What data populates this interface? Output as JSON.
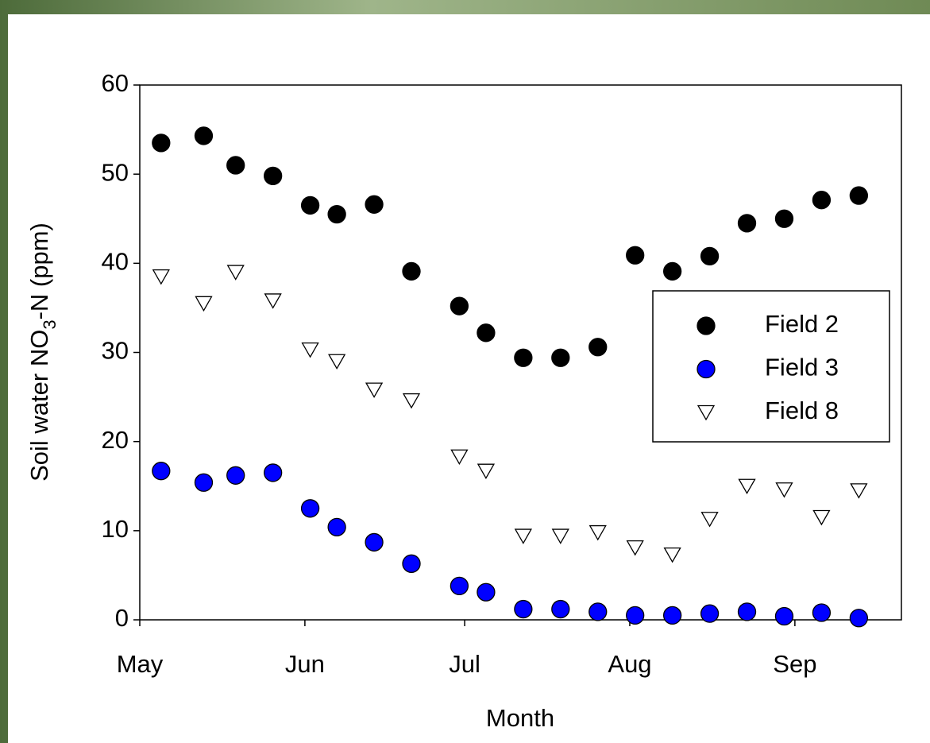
{
  "chart_data": {
    "type": "scatter",
    "xlabel": "Month",
    "ylabel": [
      "Soil water NO",
      "3",
      "-N (ppm)"
    ],
    "xlim": [
      0,
      143
    ],
    "xticks": [
      {
        "value": 0,
        "label": "May"
      },
      {
        "value": 31,
        "label": "Jun"
      },
      {
        "value": 61,
        "label": "Jul"
      },
      {
        "value": 92,
        "label": "Aug"
      },
      {
        "value": 123,
        "label": "Sep"
      }
    ],
    "ylim": [
      0,
      60
    ],
    "yticks": [
      0,
      10,
      20,
      30,
      40,
      50,
      60
    ],
    "x": [
      4,
      12,
      18,
      25,
      32,
      37,
      44,
      51,
      60,
      65,
      72,
      79,
      86,
      93,
      100,
      107,
      114,
      121,
      128,
      135
    ],
    "series": [
      {
        "name": "Field 2",
        "color": "#000000",
        "marker": "circle",
        "values": [
          53.5,
          54.3,
          51,
          49.8,
          46.5,
          45.5,
          46.6,
          39.1,
          35.2,
          32.2,
          29.4,
          29.4,
          30.6,
          40.9,
          39.1,
          40.8,
          44.5,
          45,
          47.1,
          47.6
        ]
      },
      {
        "name": "Field 3",
        "color": "#0000ff",
        "marker": "circle",
        "values": [
          16.7,
          15.4,
          16.2,
          16.5,
          12.5,
          10.4,
          8.7,
          6.3,
          3.8,
          3.1,
          1.2,
          1.2,
          0.9,
          0.5,
          0.5,
          0.7,
          0.9,
          0.4,
          0.8,
          0.2
        ]
      },
      {
        "name": "Field 8",
        "color": "#ffffff",
        "marker": "triangle-down",
        "values": [
          38.5,
          35.5,
          39,
          35.8,
          30.3,
          29,
          25.8,
          24.6,
          18.3,
          16.7,
          9.4,
          9.4,
          9.8,
          8.1,
          7.3,
          11.3,
          15,
          14.6,
          11.5,
          14.5
        ]
      }
    ],
    "legend": "right"
  }
}
